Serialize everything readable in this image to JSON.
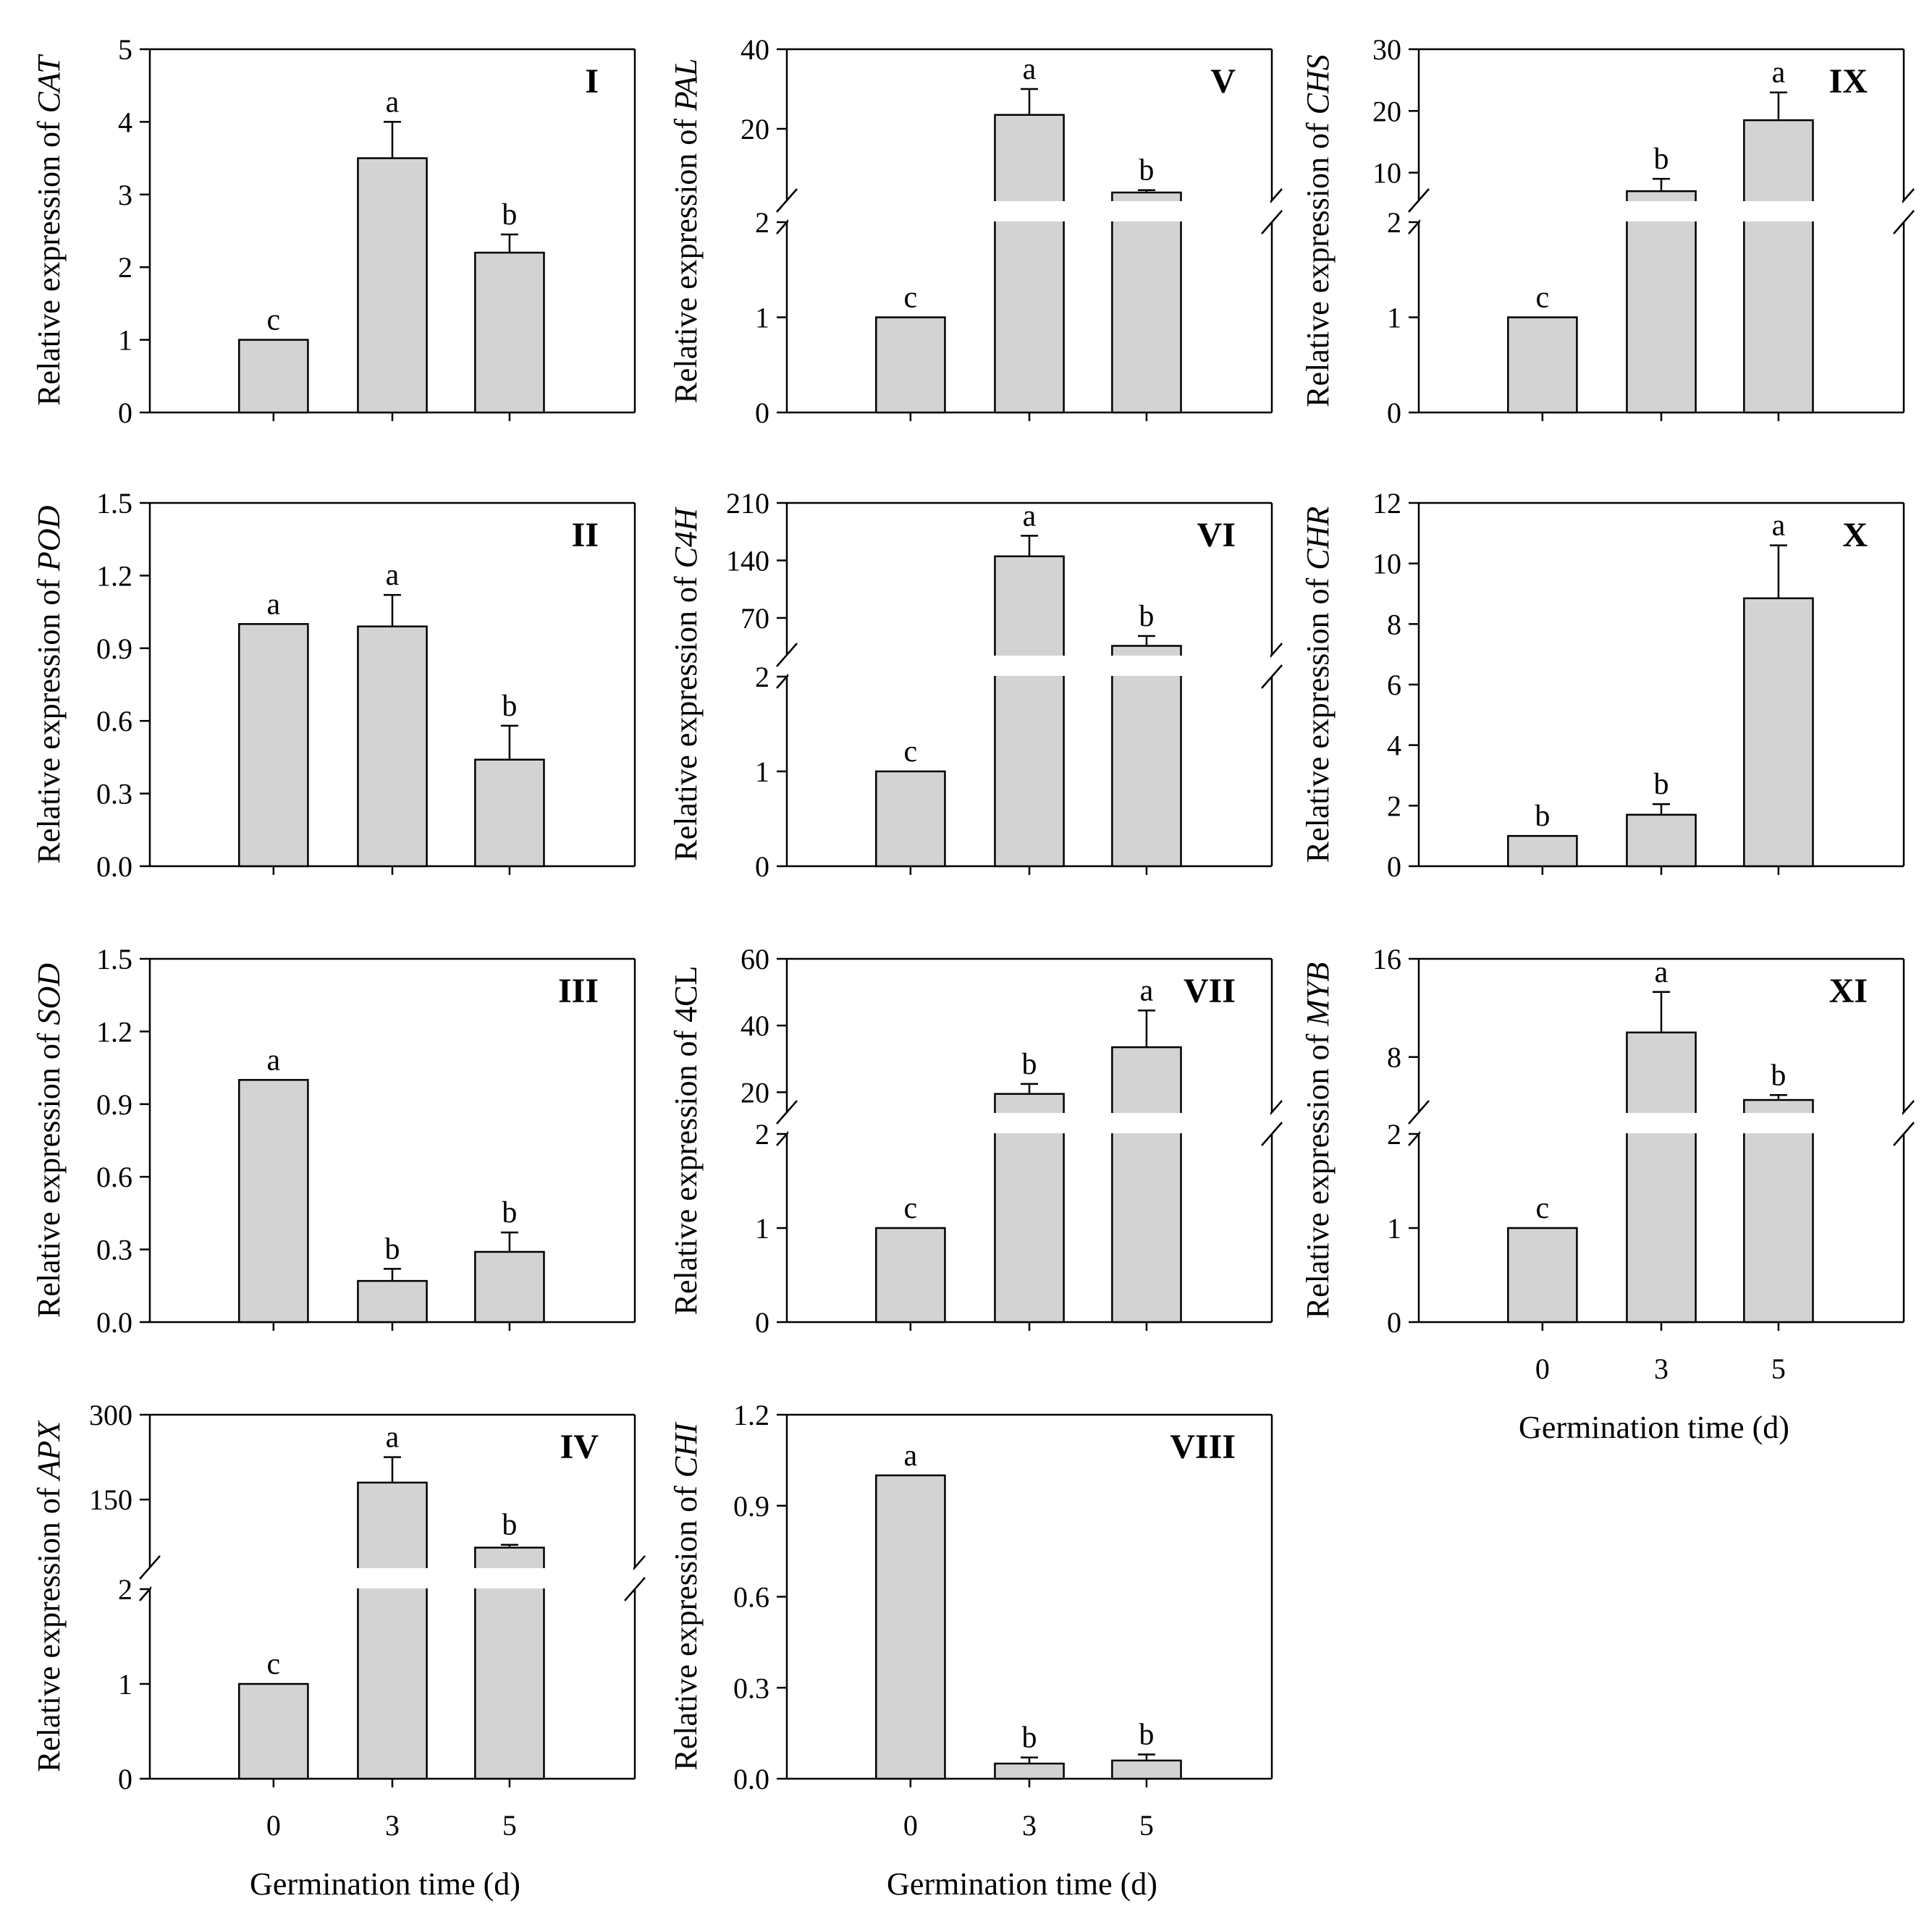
{
  "figure": {
    "xlabel": "Germination time (d)",
    "ylabel_prefix": "Relative expression of ",
    "bar_color": "#d3d3d3",
    "categories": [
      "0",
      "3",
      "5"
    ]
  },
  "chart_data": [
    {
      "id": "I",
      "type": "bar",
      "gene": "CAT",
      "gene_italic": true,
      "panel_label": "I",
      "categories": [
        "0",
        "3",
        "5"
      ],
      "values": [
        1.0,
        3.5,
        2.2
      ],
      "errors": [
        0,
        0.5,
        0.25
      ],
      "letters": [
        "c",
        "a",
        "b"
      ],
      "broken": false,
      "ylim": [
        0,
        5
      ],
      "yticks": [
        "0",
        "1",
        "2",
        "3",
        "4",
        "5"
      ],
      "xlabel": ""
    },
    {
      "id": "II",
      "type": "bar",
      "gene": "POD",
      "gene_italic": true,
      "panel_label": "II",
      "categories": [
        "0",
        "3",
        "5"
      ],
      "values": [
        1.0,
        0.99,
        0.44
      ],
      "errors": [
        0,
        0.13,
        0.14
      ],
      "letters": [
        "a",
        "a",
        "b"
      ],
      "broken": false,
      "ylim": [
        0,
        1.5
      ],
      "yticks": [
        "0.0",
        "0.3",
        "0.6",
        "0.9",
        "1.2",
        "1.5"
      ],
      "xlabel": ""
    },
    {
      "id": "III",
      "type": "bar",
      "gene": "SOD",
      "gene_italic": true,
      "panel_label": "III",
      "categories": [
        "0",
        "3",
        "5"
      ],
      "values": [
        1.0,
        0.17,
        0.29
      ],
      "errors": [
        0,
        0.05,
        0.08
      ],
      "letters": [
        "a",
        "b",
        "b"
      ],
      "broken": false,
      "ylim": [
        0,
        1.5
      ],
      "yticks": [
        "0.0",
        "0.3",
        "0.6",
        "0.9",
        "1.2",
        "1.5"
      ],
      "xlabel": ""
    },
    {
      "id": "IV",
      "type": "bar",
      "gene": "APX",
      "gene_italic": true,
      "panel_label": "IV",
      "categories": [
        "0",
        "3",
        "5"
      ],
      "values": [
        1.0,
        180,
        65
      ],
      "errors": [
        0,
        45,
        5
      ],
      "letters": [
        "c",
        "a",
        "b"
      ],
      "broken": true,
      "lower": {
        "ylim": [
          0,
          2
        ],
        "yticks": [
          "0",
          "1",
          "2"
        ]
      },
      "upper": {
        "ylim": [
          30,
          300
        ],
        "yticks": [
          "150",
          "300"
        ]
      },
      "xlabel": "Germination time (d)"
    },
    {
      "id": "V",
      "type": "bar",
      "gene": "PAL",
      "gene_italic": true,
      "panel_label": "V",
      "categories": [
        "0",
        "3",
        "5"
      ],
      "values": [
        1.0,
        23.5,
        4.0
      ],
      "errors": [
        0,
        6.5,
        0.6
      ],
      "letters": [
        "c",
        "a",
        "b"
      ],
      "broken": true,
      "lower": {
        "ylim": [
          0,
          2
        ],
        "yticks": [
          "0",
          "1",
          "2"
        ]
      },
      "upper": {
        "ylim": [
          2,
          40
        ],
        "yticks": [
          "20",
          "40"
        ]
      },
      "xlabel": ""
    },
    {
      "id": "VI",
      "type": "bar",
      "gene": "C4H",
      "gene_italic": true,
      "panel_label": "VI",
      "categories": [
        "0",
        "3",
        "5"
      ],
      "values": [
        1.0,
        145,
        36
      ],
      "errors": [
        0,
        25,
        12
      ],
      "letters": [
        "c",
        "a",
        "b"
      ],
      "broken": true,
      "lower": {
        "ylim": [
          0,
          2
        ],
        "yticks": [
          "0",
          "1",
          "2"
        ]
      },
      "upper": {
        "ylim": [
          25,
          210
        ],
        "yticks": [
          "70",
          "140",
          "210"
        ]
      },
      "xlabel": ""
    },
    {
      "id": "VII",
      "type": "bar",
      "gene": "4CL",
      "gene_italic": false,
      "panel_label": "VII",
      "categories": [
        "0",
        "3",
        "5"
      ],
      "values": [
        1.0,
        19.5,
        33.5
      ],
      "errors": [
        0,
        3,
        11
      ],
      "letters": [
        "c",
        "b",
        "a"
      ],
      "broken": true,
      "lower": {
        "ylim": [
          0,
          2
        ],
        "yticks": [
          "0",
          "1",
          "2"
        ]
      },
      "upper": {
        "ylim": [
          14,
          60
        ],
        "yticks": [
          "20",
          "40",
          "60"
        ]
      },
      "xlabel": ""
    },
    {
      "id": "VIII",
      "type": "bar",
      "gene": "CHI",
      "gene_italic": true,
      "panel_label": "VIII",
      "categories": [
        "0",
        "3",
        "5"
      ],
      "values": [
        1.0,
        0.05,
        0.06
      ],
      "errors": [
        0,
        0.02,
        0.02
      ],
      "letters": [
        "a",
        "b",
        "b"
      ],
      "broken": false,
      "ylim": [
        0,
        1.2
      ],
      "yticks": [
        "0.0",
        "0.3",
        "0.6",
        "0.9",
        "1.2"
      ],
      "xlabel": "Germination time (d)"
    },
    {
      "id": "IX",
      "type": "bar",
      "gene": "CHS",
      "gene_italic": true,
      "panel_label": "IX",
      "categories": [
        "0",
        "3",
        "5"
      ],
      "values": [
        1.0,
        7.0,
        18.5
      ],
      "errors": [
        0,
        2,
        4.5
      ],
      "letters": [
        "c",
        "b",
        "a"
      ],
      "broken": true,
      "lower": {
        "ylim": [
          0,
          2
        ],
        "yticks": [
          "0",
          "1",
          "2"
        ]
      },
      "upper": {
        "ylim": [
          5.5,
          30
        ],
        "yticks": [
          "10",
          "20",
          "30"
        ]
      },
      "xlabel": ""
    },
    {
      "id": "X",
      "type": "bar",
      "gene": "CHR",
      "gene_italic": true,
      "panel_label": "X",
      "categories": [
        "0",
        "3",
        "5"
      ],
      "values": [
        1.0,
        1.7,
        8.85
      ],
      "errors": [
        0,
        0.35,
        1.75
      ],
      "letters": [
        "b",
        "b",
        "a"
      ],
      "broken": false,
      "ylim": [
        0,
        12
      ],
      "yticks": [
        "0",
        "2",
        "4",
        "6",
        "8",
        "10",
        "12"
      ],
      "xlabel": ""
    },
    {
      "id": "XI",
      "type": "bar",
      "gene": "MYB",
      "gene_italic": true,
      "panel_label": "XI",
      "categories": [
        "0",
        "3",
        "5"
      ],
      "values": [
        1.0,
        10,
        4.5
      ],
      "errors": [
        0,
        3.3,
        0.4
      ],
      "letters": [
        "c",
        "a",
        "b"
      ],
      "broken": true,
      "lower": {
        "ylim": [
          0,
          2
        ],
        "yticks": [
          "0",
          "1",
          "2"
        ]
      },
      "upper": {
        "ylim": [
          3.5,
          16
        ],
        "yticks": [
          "8",
          "16"
        ]
      },
      "xlabel": "Germination time (d)"
    }
  ]
}
